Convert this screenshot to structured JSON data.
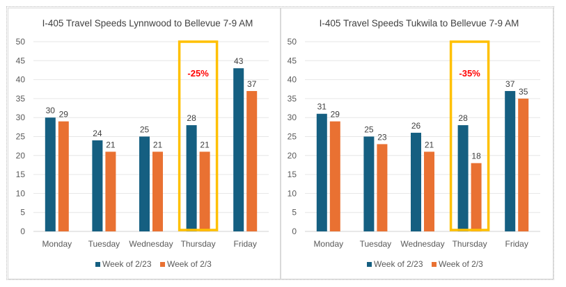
{
  "chart_data": [
    {
      "type": "bar",
      "title": "I-405 Travel Speeds Lynnwood to Bellevue 7-9 AM",
      "categories": [
        "Monday",
        "Tuesday",
        "Wednesday",
        "Thursday",
        "Friday"
      ],
      "series": [
        {
          "name": "Week of 2/23",
          "color": "#155f81",
          "values": [
            30,
            24,
            25,
            28,
            43
          ]
        },
        {
          "name": "Week of 2/3",
          "color": "#e97132",
          "values": [
            29,
            21,
            21,
            21,
            37
          ]
        }
      ],
      "ylim": [
        0,
        50
      ],
      "yticks": [
        0,
        5,
        10,
        15,
        20,
        25,
        30,
        35,
        40,
        45,
        50
      ],
      "grid": true,
      "legend": "bottom",
      "highlight": {
        "category": "Thursday",
        "label": "-25%",
        "color": "#ffc000",
        "label_color": "#ff0000"
      }
    },
    {
      "type": "bar",
      "title": "I-405 Travel Speeds Tukwila to Bellevue 7-9 AM",
      "categories": [
        "Monday",
        "Tuesday",
        "Wednesday",
        "Thursday",
        "Friday"
      ],
      "series": [
        {
          "name": "Week of 2/23",
          "color": "#155f81",
          "values": [
            31,
            25,
            26,
            28,
            37
          ]
        },
        {
          "name": "Week of 2/3",
          "color": "#e97132",
          "values": [
            29,
            23,
            21,
            18,
            35
          ]
        }
      ],
      "ylim": [
        0,
        50
      ],
      "yticks": [
        0,
        5,
        10,
        15,
        20,
        25,
        30,
        35,
        40,
        45,
        50
      ],
      "grid": true,
      "legend": "bottom",
      "highlight": {
        "category": "Thursday",
        "label": "-35%",
        "color": "#ffc000",
        "label_color": "#ff0000"
      }
    }
  ]
}
